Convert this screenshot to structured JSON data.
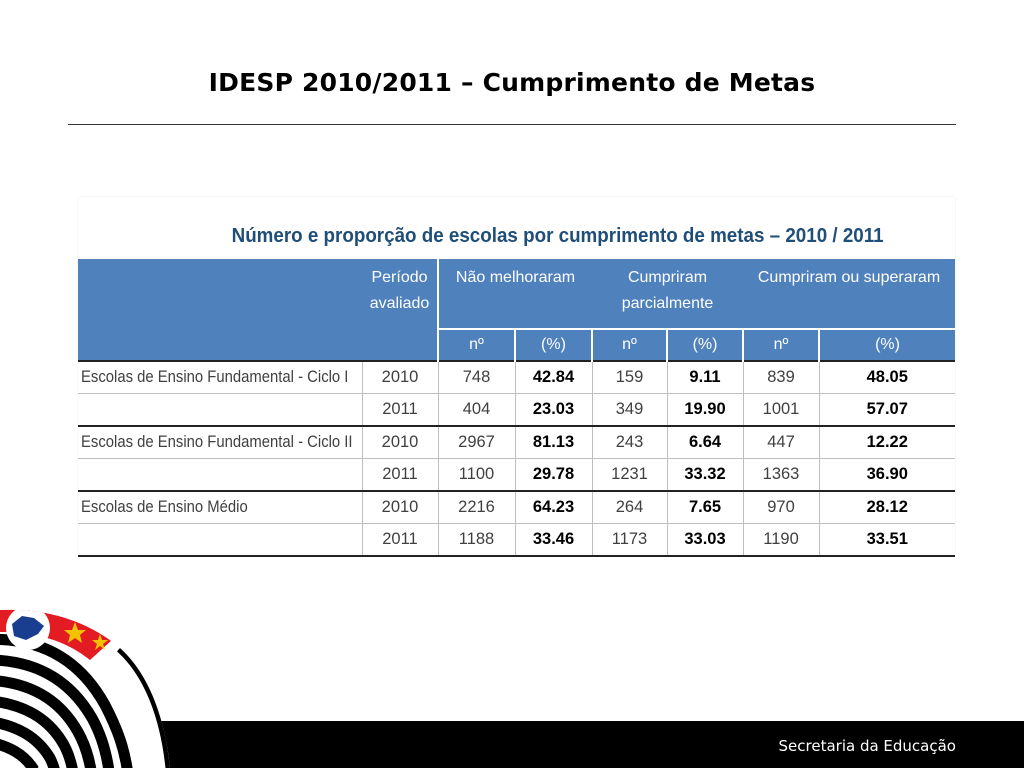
{
  "slide": {
    "title": "IDESP 2010/2011 – Cumprimento de Metas",
    "footer": "Secretaria da Educação"
  },
  "table": {
    "caption": "Número e proporção de escolas por cumprimento de metas – 2010 / 2011",
    "headers": {
      "period": "Período avaliado",
      "groups": [
        "Não melhoraram",
        "Cumpriram parcialmente",
        "Cumpriram ou superaram"
      ],
      "sub": [
        "nº",
        "(%)",
        "nº",
        "(%)",
        "nº",
        "(%)"
      ]
    },
    "rows": [
      {
        "school": "Escolas de Ensino Fundamental - Ciclo I",
        "year": "2010",
        "nm_n": "748",
        "nm_p": "42.84",
        "cp_n": "159",
        "cp_p": "9.11",
        "cs_n": "839",
        "cs_p": "48.05"
      },
      {
        "school": "",
        "year": "2011",
        "nm_n": "404",
        "nm_p": "23.03",
        "cp_n": "349",
        "cp_p": "19.90",
        "cs_n": "1001",
        "cs_p": "57.07"
      },
      {
        "school": "Escolas de Ensino Fundamental - Ciclo II",
        "year": "2010",
        "nm_n": "2967",
        "nm_p": "81.13",
        "cp_n": "243",
        "cp_p": "6.64",
        "cs_n": "447",
        "cs_p": "12.22"
      },
      {
        "school": "",
        "year": "2011",
        "nm_n": "1100",
        "nm_p": "29.78",
        "cp_n": "1231",
        "cp_p": "33.32",
        "cs_n": "1363",
        "cs_p": "36.90"
      },
      {
        "school": "Escolas de Ensino Médio",
        "year": "2010",
        "nm_n": "2216",
        "nm_p": "64.23",
        "cp_n": "264",
        "cp_p": "7.65",
        "cs_n": "970",
        "cs_p": "28.12"
      },
      {
        "school": "",
        "year": "2011",
        "nm_n": "1188",
        "nm_p": "33.46",
        "cp_n": "1173",
        "cp_p": "33.03",
        "cs_n": "1190",
        "cs_p": "33.51"
      }
    ]
  },
  "colors": {
    "header_bg": "#4f81bd",
    "caption": "#1f4e79",
    "footer_bar": "#000000",
    "flag_red": "#e31b23",
    "flag_blue": "#1a3e8f",
    "flag_gold": "#f2c200"
  },
  "icons": {
    "emblem": "sao-paulo-flag-emblem"
  }
}
